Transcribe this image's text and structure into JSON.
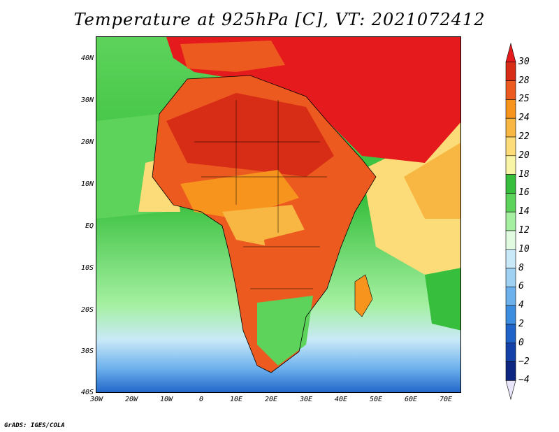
{
  "title": "Temperature at 925hPa [C], VT: 2021072412",
  "credit": "GrADS: IGES/COLA",
  "map": {
    "region": "Africa",
    "variable": "Temperature at 925hPa",
    "lon_range": [
      -30,
      75
    ],
    "lat_range": [
      -40,
      45
    ],
    "lat_labels": [
      "40N",
      "30N",
      "20N",
      "10N",
      "EQ",
      "10S",
      "20S",
      "30S",
      "40S"
    ],
    "lat_values": [
      40,
      30,
      20,
      10,
      0,
      -10,
      -20,
      -30,
      -40
    ],
    "lon_labels": [
      "30W",
      "20W",
      "10W",
      "0",
      "10E",
      "20E",
      "30E",
      "40E",
      "50E",
      "60E",
      "70E"
    ],
    "lon_values": [
      -30,
      -20,
      -10,
      0,
      10,
      20,
      30,
      40,
      50,
      60,
      70
    ]
  },
  "colorbar": {
    "labels": [
      "30",
      "28",
      "25",
      "24",
      "22",
      "20",
      "18",
      "16",
      "14",
      "12",
      "10",
      "8",
      "6",
      "4",
      "2",
      "0",
      "−2",
      "−4"
    ],
    "colors": [
      "#e41a1c",
      "#d72c16",
      "#ec5a1f",
      "#f7941e",
      "#f7b742",
      "#fbdc78",
      "#f9f5a6",
      "#36be3c",
      "#5dd35b",
      "#a4f0a0",
      "#e1fbe1",
      "#c9e9f8",
      "#9fd2f2",
      "#6cb0ec",
      "#3c8de0",
      "#1f63c9",
      "#1441a8",
      "#0c2682",
      "#e8e4fa"
    ]
  }
}
